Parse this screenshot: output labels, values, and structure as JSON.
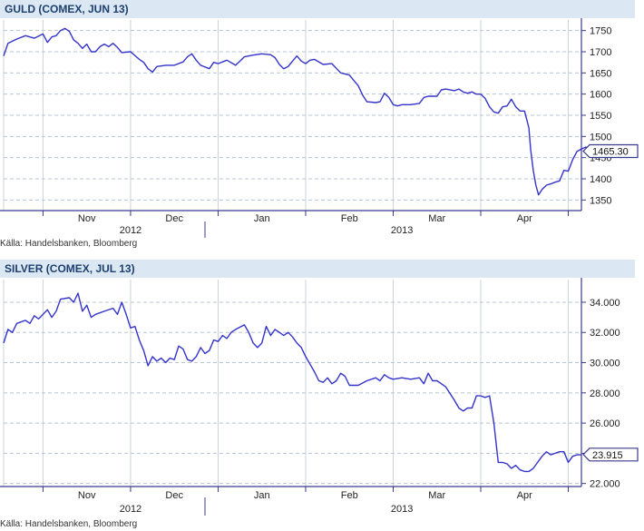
{
  "chart_data": [
    {
      "type": "line",
      "title": "GULD (COMEX, JUN 13)",
      "source": "Källa: Handelsbanken, Bloomberg",
      "ylim": [
        1325,
        1775
      ],
      "yticks": [
        "1750",
        "1700",
        "1650",
        "1600",
        "1550",
        "1500",
        "1450",
        "1400",
        "1350"
      ],
      "ytick_values": [
        1750,
        1700,
        1650,
        1600,
        1550,
        1500,
        1450,
        1400,
        1350
      ],
      "last_value_label": "1465.30",
      "last_value": 1465.3,
      "grid": true,
      "months": [
        {
          "label": "Nov",
          "t": 0.5
        },
        {
          "label": "Dec",
          "t": 1.5
        },
        {
          "label": "Jan",
          "t": 2.5
        },
        {
          "label": "Feb",
          "t": 3.5
        },
        {
          "label": "Mar",
          "t": 4.5
        },
        {
          "label": "Apr",
          "t": 5.5
        }
      ],
      "month_bounds": [
        0,
        1,
        2,
        3,
        4,
        5,
        6
      ],
      "years": [
        {
          "label": "2012",
          "t": 1.0
        },
        {
          "label": "2013",
          "t": 4.1
        }
      ],
      "year_divider_t": 1.85,
      "xlim": [
        -0.45,
        6.15
      ],
      "series": [
        {
          "color": "#3333cc",
          "points": [
            [
              -0.45,
              1690
            ],
            [
              -0.4,
              1720
            ],
            [
              -0.3,
              1730
            ],
            [
              -0.2,
              1738
            ],
            [
              -0.1,
              1732
            ],
            [
              0.0,
              1742
            ],
            [
              0.05,
              1722
            ],
            [
              0.1,
              1735
            ],
            [
              0.15,
              1738
            ],
            [
              0.2,
              1750
            ],
            [
              0.25,
              1755
            ],
            [
              0.3,
              1748
            ],
            [
              0.35,
              1728
            ],
            [
              0.4,
              1720
            ],
            [
              0.45,
              1708
            ],
            [
              0.5,
              1718
            ],
            [
              0.55,
              1700
            ],
            [
              0.6,
              1700
            ],
            [
              0.65,
              1712
            ],
            [
              0.7,
              1718
            ],
            [
              0.75,
              1712
            ],
            [
              0.8,
              1720
            ],
            [
              0.85,
              1710
            ],
            [
              0.9,
              1698
            ],
            [
              1.0,
              1700
            ],
            [
              1.1,
              1682
            ],
            [
              1.15,
              1675
            ],
            [
              1.2,
              1660
            ],
            [
              1.25,
              1652
            ],
            [
              1.3,
              1665
            ],
            [
              1.4,
              1668
            ],
            [
              1.5,
              1668
            ],
            [
              1.6,
              1676
            ],
            [
              1.65,
              1688
            ],
            [
              1.7,
              1695
            ],
            [
              1.75,
              1680
            ],
            [
              1.8,
              1668
            ],
            [
              1.9,
              1660
            ],
            [
              1.95,
              1675
            ],
            [
              2.0,
              1672
            ],
            [
              2.1,
              1680
            ],
            [
              2.2,
              1668
            ],
            [
              2.3,
              1688
            ],
            [
              2.4,
              1692
            ],
            [
              2.5,
              1695
            ],
            [
              2.6,
              1693
            ],
            [
              2.65,
              1686
            ],
            [
              2.7,
              1670
            ],
            [
              2.75,
              1660
            ],
            [
              2.8,
              1665
            ],
            [
              2.85,
              1678
            ],
            [
              2.9,
              1690
            ],
            [
              2.95,
              1678
            ],
            [
              3.0,
              1672
            ],
            [
              3.05,
              1680
            ],
            [
              3.1,
              1682
            ],
            [
              3.2,
              1670
            ],
            [
              3.3,
              1672
            ],
            [
              3.4,
              1650
            ],
            [
              3.5,
              1645
            ],
            [
              3.55,
              1632
            ],
            [
              3.6,
              1620
            ],
            [
              3.65,
              1598
            ],
            [
              3.7,
              1582
            ],
            [
              3.8,
              1580
            ],
            [
              3.85,
              1582
            ],
            [
              3.9,
              1602
            ],
            [
              3.95,
              1592
            ],
            [
              4.0,
              1575
            ],
            [
              4.05,
              1572
            ],
            [
              4.1,
              1575
            ],
            [
              4.2,
              1575
            ],
            [
              4.3,
              1578
            ],
            [
              4.35,
              1592
            ],
            [
              4.4,
              1595
            ],
            [
              4.5,
              1595
            ],
            [
              4.55,
              1610
            ],
            [
              4.6,
              1612
            ],
            [
              4.7,
              1608
            ],
            [
              4.75,
              1612
            ],
            [
              4.8,
              1605
            ],
            [
              4.85,
              1602
            ],
            [
              4.9,
              1605
            ],
            [
              4.95,
              1600
            ],
            [
              5.0,
              1600
            ],
            [
              5.05,
              1590
            ],
            [
              5.1,
              1570
            ],
            [
              5.15,
              1558
            ],
            [
              5.2,
              1555
            ],
            [
              5.25,
              1570
            ],
            [
              5.3,
              1572
            ],
            [
              5.35,
              1588
            ],
            [
              5.4,
              1570
            ],
            [
              5.45,
              1560
            ],
            [
              5.5,
              1560
            ],
            [
              5.55,
              1520
            ],
            [
              5.57,
              1470
            ],
            [
              5.6,
              1420
            ],
            [
              5.63,
              1385
            ],
            [
              5.66,
              1362
            ],
            [
              5.7,
              1375
            ],
            [
              5.75,
              1385
            ],
            [
              5.8,
              1388
            ],
            [
              5.85,
              1392
            ],
            [
              5.9,
              1395
            ],
            [
              5.95,
              1420
            ],
            [
              6.0,
              1418
            ],
            [
              6.05,
              1445
            ],
            [
              6.1,
              1465
            ],
            [
              6.15,
              1470
            ],
            [
              6.2,
              1475
            ],
            [
              6.25,
              1470
            ],
            [
              6.3,
              1450
            ],
            [
              6.35,
              1455
            ],
            [
              6.4,
              1468
            ],
            [
              6.45,
              1465
            ]
          ]
        }
      ]
    },
    {
      "type": "line",
      "title": "SILVER (COMEX, JUL 13)",
      "source": "Källa: Handelsbanken, Bloomberg",
      "ylim": [
        21.8,
        35.5
      ],
      "yticks": [
        "34.000",
        "32.000",
        "30.000",
        "28.000",
        "26.000",
        "24.000",
        "22.000"
      ],
      "ytick_values": [
        34,
        32,
        30,
        28,
        26,
        24,
        22
      ],
      "last_value_label": "23.915",
      "last_value": 23.915,
      "grid": true,
      "months": [
        {
          "label": "Nov",
          "t": 0.5
        },
        {
          "label": "Dec",
          "t": 1.5
        },
        {
          "label": "Jan",
          "t": 2.5
        },
        {
          "label": "Feb",
          "t": 3.5
        },
        {
          "label": "Mar",
          "t": 4.5
        },
        {
          "label": "Apr",
          "t": 5.5
        }
      ],
      "month_bounds": [
        0,
        1,
        2,
        3,
        4,
        5,
        6
      ],
      "years": [
        {
          "label": "2012",
          "t": 1.0
        },
        {
          "label": "2013",
          "t": 4.1
        }
      ],
      "year_divider_t": 1.85,
      "xlim": [
        -0.45,
        6.15
      ],
      "series": [
        {
          "color": "#3333cc",
          "points": [
            [
              -0.45,
              31.3
            ],
            [
              -0.4,
              32.2
            ],
            [
              -0.35,
              32.0
            ],
            [
              -0.3,
              32.6
            ],
            [
              -0.2,
              32.8
            ],
            [
              -0.15,
              32.6
            ],
            [
              -0.1,
              33.1
            ],
            [
              -0.05,
              32.9
            ],
            [
              0.0,
              33.2
            ],
            [
              0.05,
              33.5
            ],
            [
              0.1,
              33.0
            ],
            [
              0.15,
              33.4
            ],
            [
              0.2,
              34.2
            ],
            [
              0.3,
              34.3
            ],
            [
              0.35,
              34.0
            ],
            [
              0.4,
              34.6
            ],
            [
              0.45,
              33.4
            ],
            [
              0.5,
              33.8
            ],
            [
              0.55,
              33.0
            ],
            [
              0.6,
              33.2
            ],
            [
              0.7,
              33.4
            ],
            [
              0.8,
              33.6
            ],
            [
              0.85,
              33.2
            ],
            [
              0.9,
              34.0
            ],
            [
              0.95,
              33.2
            ],
            [
              1.0,
              32.3
            ],
            [
              1.05,
              32.4
            ],
            [
              1.1,
              31.5
            ],
            [
              1.15,
              30.8
            ],
            [
              1.2,
              29.8
            ],
            [
              1.25,
              30.4
            ],
            [
              1.3,
              30.1
            ],
            [
              1.35,
              30.3
            ],
            [
              1.4,
              30.0
            ],
            [
              1.45,
              30.3
            ],
            [
              1.5,
              30.2
            ],
            [
              1.55,
              31.1
            ],
            [
              1.6,
              30.9
            ],
            [
              1.65,
              30.2
            ],
            [
              1.7,
              30.1
            ],
            [
              1.75,
              30.4
            ],
            [
              1.8,
              31.0
            ],
            [
              1.85,
              30.6
            ],
            [
              1.9,
              30.8
            ],
            [
              1.95,
              31.5
            ],
            [
              2.0,
              31.4
            ],
            [
              2.05,
              31.8
            ],
            [
              2.1,
              31.6
            ],
            [
              2.15,
              32.0
            ],
            [
              2.2,
              32.2
            ],
            [
              2.3,
              32.5
            ],
            [
              2.35,
              32.0
            ],
            [
              2.4,
              31.3
            ],
            [
              2.45,
              31.0
            ],
            [
              2.5,
              31.3
            ],
            [
              2.55,
              32.4
            ],
            [
              2.6,
              31.8
            ],
            [
              2.65,
              32.2
            ],
            [
              2.7,
              32.0
            ],
            [
              2.75,
              31.8
            ],
            [
              2.8,
              32.0
            ],
            [
              2.85,
              31.7
            ],
            [
              2.9,
              31.3
            ],
            [
              2.95,
              31.0
            ],
            [
              3.0,
              30.4
            ],
            [
              3.05,
              29.9
            ],
            [
              3.1,
              29.4
            ],
            [
              3.15,
              28.8
            ],
            [
              3.2,
              28.7
            ],
            [
              3.25,
              29.0
            ],
            [
              3.3,
              28.6
            ],
            [
              3.35,
              28.8
            ],
            [
              3.4,
              29.3
            ],
            [
              3.45,
              29.1
            ],
            [
              3.5,
              28.5
            ],
            [
              3.6,
              28.5
            ],
            [
              3.7,
              28.8
            ],
            [
              3.8,
              29.0
            ],
            [
              3.85,
              28.8
            ],
            [
              3.9,
              29.2
            ],
            [
              3.95,
              29.0
            ],
            [
              4.0,
              28.9
            ],
            [
              4.1,
              29.0
            ],
            [
              4.2,
              28.9
            ],
            [
              4.3,
              29.0
            ],
            [
              4.35,
              28.6
            ],
            [
              4.4,
              29.3
            ],
            [
              4.45,
              28.8
            ],
            [
              4.5,
              28.8
            ],
            [
              4.55,
              28.6
            ],
            [
              4.6,
              28.4
            ],
            [
              4.7,
              27.5
            ],
            [
              4.75,
              27.0
            ],
            [
              4.8,
              26.8
            ],
            [
              4.85,
              27.0
            ],
            [
              4.9,
              27.0
            ],
            [
              4.95,
              27.8
            ],
            [
              5.0,
              27.8
            ],
            [
              5.05,
              27.7
            ],
            [
              5.1,
              27.8
            ],
            [
              5.15,
              26.0
            ],
            [
              5.2,
              23.4
            ],
            [
              5.25,
              23.4
            ],
            [
              5.3,
              23.3
            ],
            [
              5.35,
              23.0
            ],
            [
              5.4,
              23.2
            ],
            [
              5.45,
              22.9
            ],
            [
              5.5,
              22.8
            ],
            [
              5.55,
              22.8
            ],
            [
              5.6,
              23.0
            ],
            [
              5.65,
              23.4
            ],
            [
              5.7,
              23.8
            ],
            [
              5.75,
              24.1
            ],
            [
              5.8,
              23.9
            ],
            [
              5.85,
              24.0
            ],
            [
              5.9,
              24.1
            ],
            [
              5.95,
              24.1
            ],
            [
              6.0,
              23.4
            ],
            [
              6.05,
              23.8
            ],
            [
              6.1,
              23.9
            ],
            [
              6.15,
              23.9
            ]
          ]
        }
      ]
    }
  ]
}
